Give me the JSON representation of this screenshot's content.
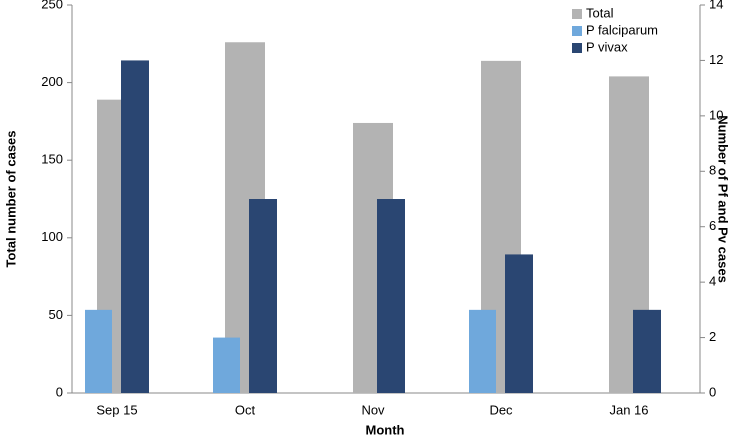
{
  "chart_data": {
    "type": "bar",
    "x_label": "Month",
    "y_label": "Total number of cases",
    "y2_label": "Number of Pf and Pv cases",
    "categories": [
      "Sep 15",
      "Oct",
      "Nov",
      "Dec",
      "Jan 16"
    ],
    "series": [
      {
        "name": "Total",
        "color": "#b3b3b3",
        "axis": "y",
        "values": [
          189,
          226,
          174,
          214,
          204
        ]
      },
      {
        "name": "P falciparum",
        "color": "#6fa8dc",
        "axis": "y2",
        "values": [
          3,
          2,
          0,
          3,
          0
        ]
      },
      {
        "name": "P vivax",
        "color": "#2a4672",
        "axis": "y2",
        "values": [
          12,
          7,
          7,
          5,
          3
        ]
      }
    ],
    "ylim": [
      0,
      250
    ],
    "yticks": [
      0,
      50,
      100,
      150,
      200,
      250
    ],
    "y2lim": [
      0,
      14
    ],
    "y2ticks": [
      0,
      2,
      4,
      6,
      8,
      10,
      12,
      14
    ],
    "grid": false,
    "legend": "upper right"
  }
}
